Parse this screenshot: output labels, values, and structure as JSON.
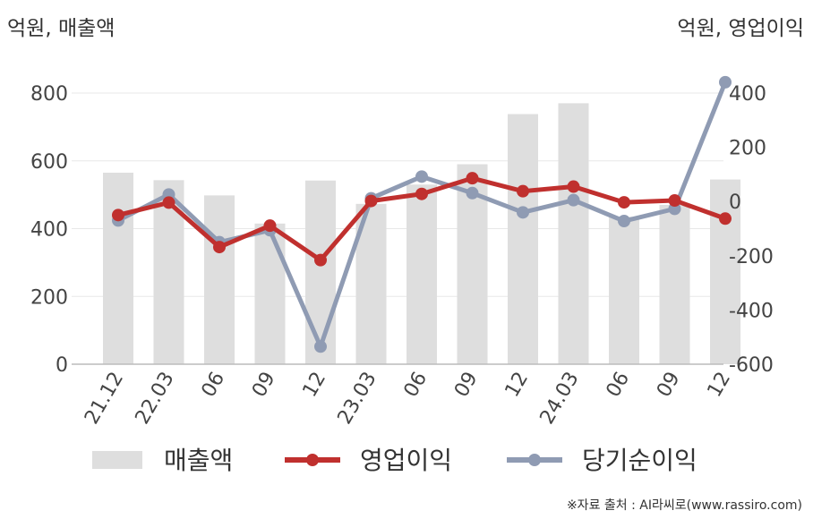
{
  "units": {
    "left": "억원, 매출액",
    "right": "억원, 영업이익"
  },
  "source": "※자료 출처 : AI라씨로(www.rassiro.com)",
  "colors": {
    "bar": "#dedede",
    "op": "#c0302e",
    "net": "#8f9bb3",
    "grid": "#e8e8e8",
    "axis": "#bbbbbb"
  },
  "chart_data": {
    "type": "bar+line",
    "categories": [
      "21.12",
      "22.03",
      "06",
      "09",
      "12",
      "23.03",
      "06",
      "09",
      "12",
      "24.03",
      "06",
      "09",
      "12"
    ],
    "y_left": {
      "label": "억원, 매출액",
      "ylim": [
        0,
        800
      ],
      "ticks": [
        0,
        200,
        400,
        600,
        800
      ]
    },
    "y_right": {
      "label": "억원, 영업이익",
      "ylim": [
        -600,
        400
      ],
      "ticks": [
        -600,
        -400,
        -200,
        0,
        200,
        400
      ]
    },
    "series": [
      {
        "name": "매출액",
        "kind": "bar",
        "axis": "left",
        "values": [
          565,
          543,
          498,
          415,
          542,
          473,
          530,
          590,
          738,
          770,
          435,
          470,
          545
        ]
      },
      {
        "name": "영업이익",
        "kind": "line",
        "axis": "right",
        "values": [
          -50,
          -4,
          -168,
          -89,
          -216,
          2,
          28,
          86,
          38,
          55,
          -3,
          4,
          -63
        ]
      },
      {
        "name": "당기순이익",
        "kind": "line",
        "axis": "right",
        "values": [
          -70,
          26,
          -150,
          -106,
          -535,
          12,
          92,
          31,
          -40,
          5,
          -72,
          -27,
          440
        ]
      }
    ],
    "grid": true,
    "legend": "bottom"
  }
}
